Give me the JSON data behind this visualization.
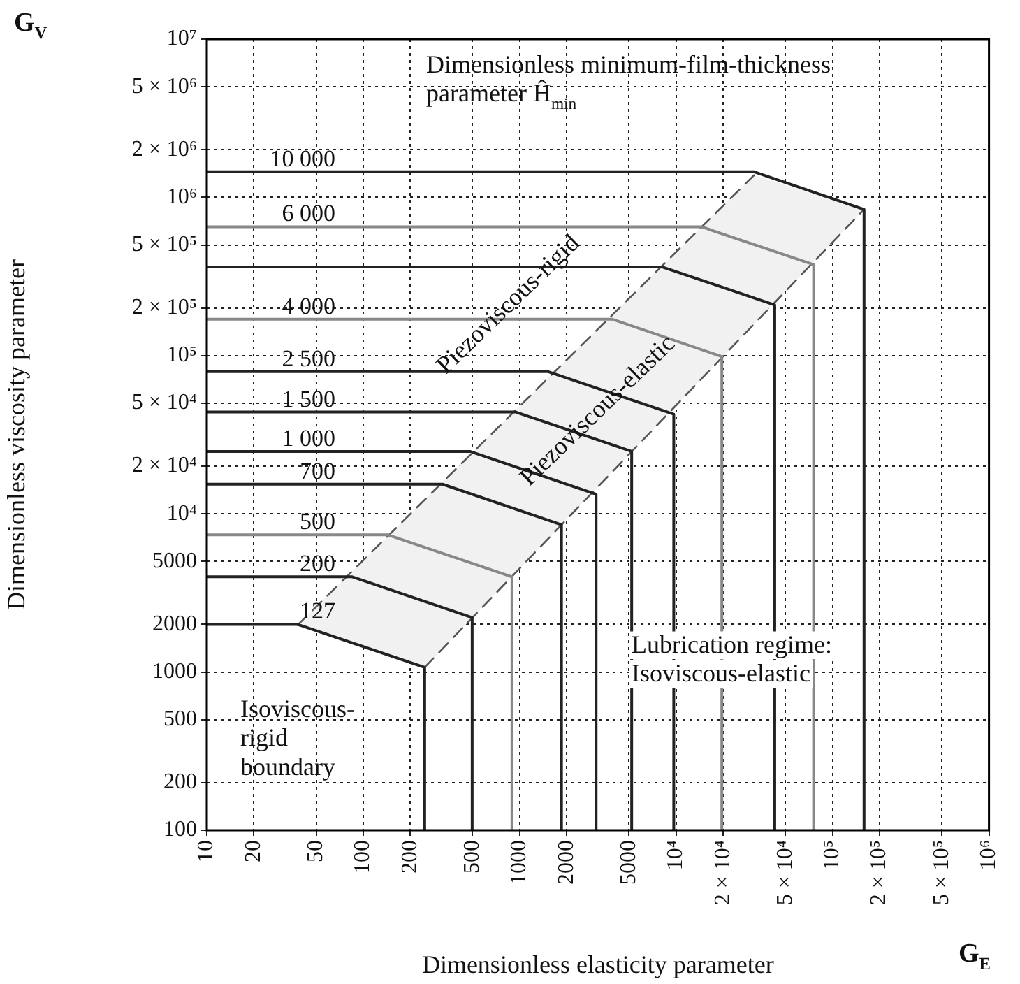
{
  "chart_data": {
    "type": "line",
    "xlabel": "Dimensionless elasticity parameter",
    "ylabel": "Dimensionless viscosity parameter",
    "log": "xy",
    "grid": true,
    "legend": false,
    "marker": "none",
    "xlim": [
      10,
      1000000
    ],
    "ylim": [
      100,
      10000000
    ],
    "xticks": [
      10,
      20,
      50,
      100,
      200,
      500,
      1000,
      2000,
      5000,
      {
        "value": 10000,
        "label": "10⁴"
      },
      {
        "value": 20000,
        "label": "2 × 10⁴"
      },
      {
        "value": 50000,
        "label": "5 × 10⁴"
      },
      {
        "value": 100000,
        "label": "10⁵"
      },
      {
        "value": 200000,
        "label": "2 × 10⁵"
      },
      {
        "value": 500000,
        "label": "5 × 10⁵"
      },
      {
        "value": 1000000,
        "label": "10⁶"
      }
    ],
    "yticks": [
      100,
      200,
      500,
      1000,
      2000,
      5000,
      {
        "value": 10000,
        "label": "10⁴"
      },
      {
        "value": 20000,
        "label": "2 × 10⁴"
      },
      {
        "value": 50000,
        "label": "5 × 10⁴"
      },
      {
        "value": 100000,
        "label": "10⁵"
      },
      {
        "value": 200000,
        "label": "2 × 10⁵"
      },
      {
        "value": 500000,
        "label": "5 × 10⁵"
      },
      {
        "value": 1000000,
        "label": "10⁶"
      },
      {
        "value": 2000000,
        "label": "2 × 10⁶"
      },
      {
        "value": 5000000,
        "label": "5 × 10⁶"
      },
      {
        "value": 10000000,
        "label": "10⁷"
      }
    ],
    "series": [
      {
        "name": "10 000",
        "color": "#222222",
        "x": [
          10,
          31500,
          159000,
          159000
        ],
        "values": [
          1450000,
          1450000,
          839000,
          100
        ]
      },
      {
        "name": "6 000",
        "color": "#888888",
        "x": [
          10,
          14500,
          75700,
          75700
        ],
        "values": [
          652000,
          652000,
          376000,
          100
        ]
      },
      {
        "color": "#222222",
        "x": [
          10,
          8170,
          42700,
          42700
        ],
        "values": [
          363000,
          363000,
          209000,
          100
        ]
      },
      {
        "name": "4 000",
        "color": "#888888",
        "x": [
          10,
          3890,
          19600,
          19600
        ],
        "values": [
          170000,
          170000,
          98600,
          100
        ]
      },
      {
        "name": "2 500",
        "color": "#222222",
        "x": [
          10,
          1510,
          9660,
          9660
        ],
        "values": [
          79200,
          79200,
          42600,
          100
        ]
      },
      {
        "name": "1 500",
        "color": "#222222",
        "x": [
          10,
          944,
          5200,
          5200
        ],
        "values": [
          44000,
          44000,
          24800,
          100
        ]
      },
      {
        "name": "1 000",
        "color": "#222222",
        "x": [
          10,
          481,
          3080,
          3080
        ],
        "values": [
          24800,
          24800,
          13300,
          100
        ]
      },
      {
        "name": "700",
        "color": "#222222",
        "x": [
          10,
          321,
          1850,
          1850
        ],
        "values": [
          15400,
          15400,
          8530,
          100
        ]
      },
      {
        "name": "500",
        "color": "#888888",
        "x": [
          10,
          144,
          893,
          893
        ],
        "values": [
          7360,
          7360,
          4000,
          100
        ]
      },
      {
        "name": "200",
        "color": "#222222",
        "x": [
          10,
          85,
          497,
          497
        ],
        "values": [
          4000,
          4000,
          2210,
          100
        ]
      },
      {
        "name": "127",
        "color": "#222222",
        "x": [
          10,
          38,
          247,
          247
        ],
        "values": [
          2000,
          2000,
          1070,
          100
        ]
      },
      {
        "color": "#555555",
        "line_style": "dashed",
        "x": [
          38,
          31500
        ],
        "values": [
          1980,
          1380000
        ]
      },
      {
        "color": "#555555",
        "line_style": "dashed",
        "x": [
          247,
          159000
        ],
        "values": [
          1070,
          839000
        ]
      }
    ],
    "annotations": [
      "Dimensionless minimum-film-thickness parameter Ĥ$_{min}$",
      "Piezoviscous-rigid",
      "Piezoviscous-elastic",
      "Lubrication regime: Isoviscous-elastic",
      "Isoviscous-rigid boundary",
      "G$_{V}$",
      "G$_{E}$"
    ]
  }
}
